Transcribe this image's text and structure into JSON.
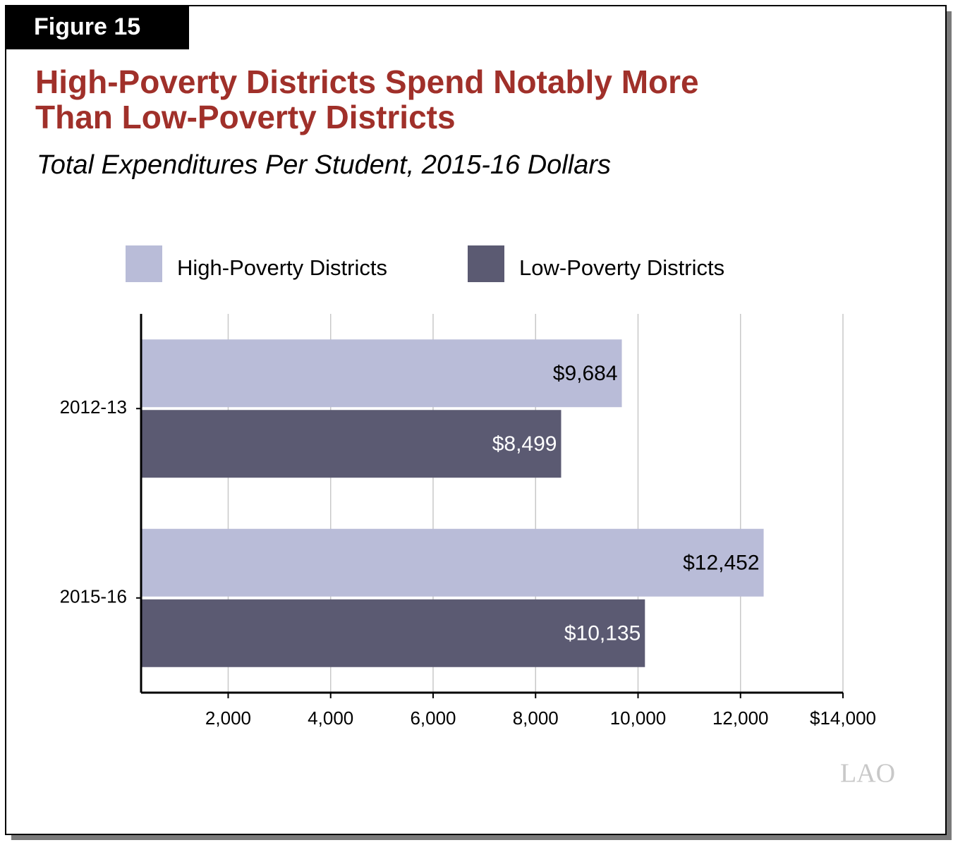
{
  "chart_data": {
    "type": "bar",
    "orientation": "horizontal",
    "figure_label": "Figure 15",
    "title": [
      "High-Poverty Districts Spend Notably More",
      "Than Low-Poverty Districts"
    ],
    "subtitle": "Total Expenditures Per Student, 2015-16 Dollars",
    "categories": [
      "2012-13",
      "2015-16"
    ],
    "series": [
      {
        "name": "High-Poverty Districts",
        "color": "#b9bcd8",
        "values": [
          9684,
          12452
        ],
        "value_labels": [
          "$9,684",
          "$12,452"
        ]
      },
      {
        "name": "Low-Poverty Districts",
        "color": "#5b5a72",
        "values": [
          8499,
          10135
        ],
        "value_labels": [
          "$8,499",
          "$10,135"
        ]
      }
    ],
    "xlim": [
      300,
      14000
    ],
    "xticks": [
      {
        "value": 2000,
        "label": "2,000"
      },
      {
        "value": 4000,
        "label": "4,000"
      },
      {
        "value": 6000,
        "label": "6,000"
      },
      {
        "value": 8000,
        "label": "8,000"
      },
      {
        "value": 10000,
        "label": "10,000"
      },
      {
        "value": 12000,
        "label": "12,000"
      },
      {
        "value": 14000,
        "label": "$14,000"
      }
    ],
    "grid": true,
    "legend": "top",
    "source_logo": "LAO"
  }
}
